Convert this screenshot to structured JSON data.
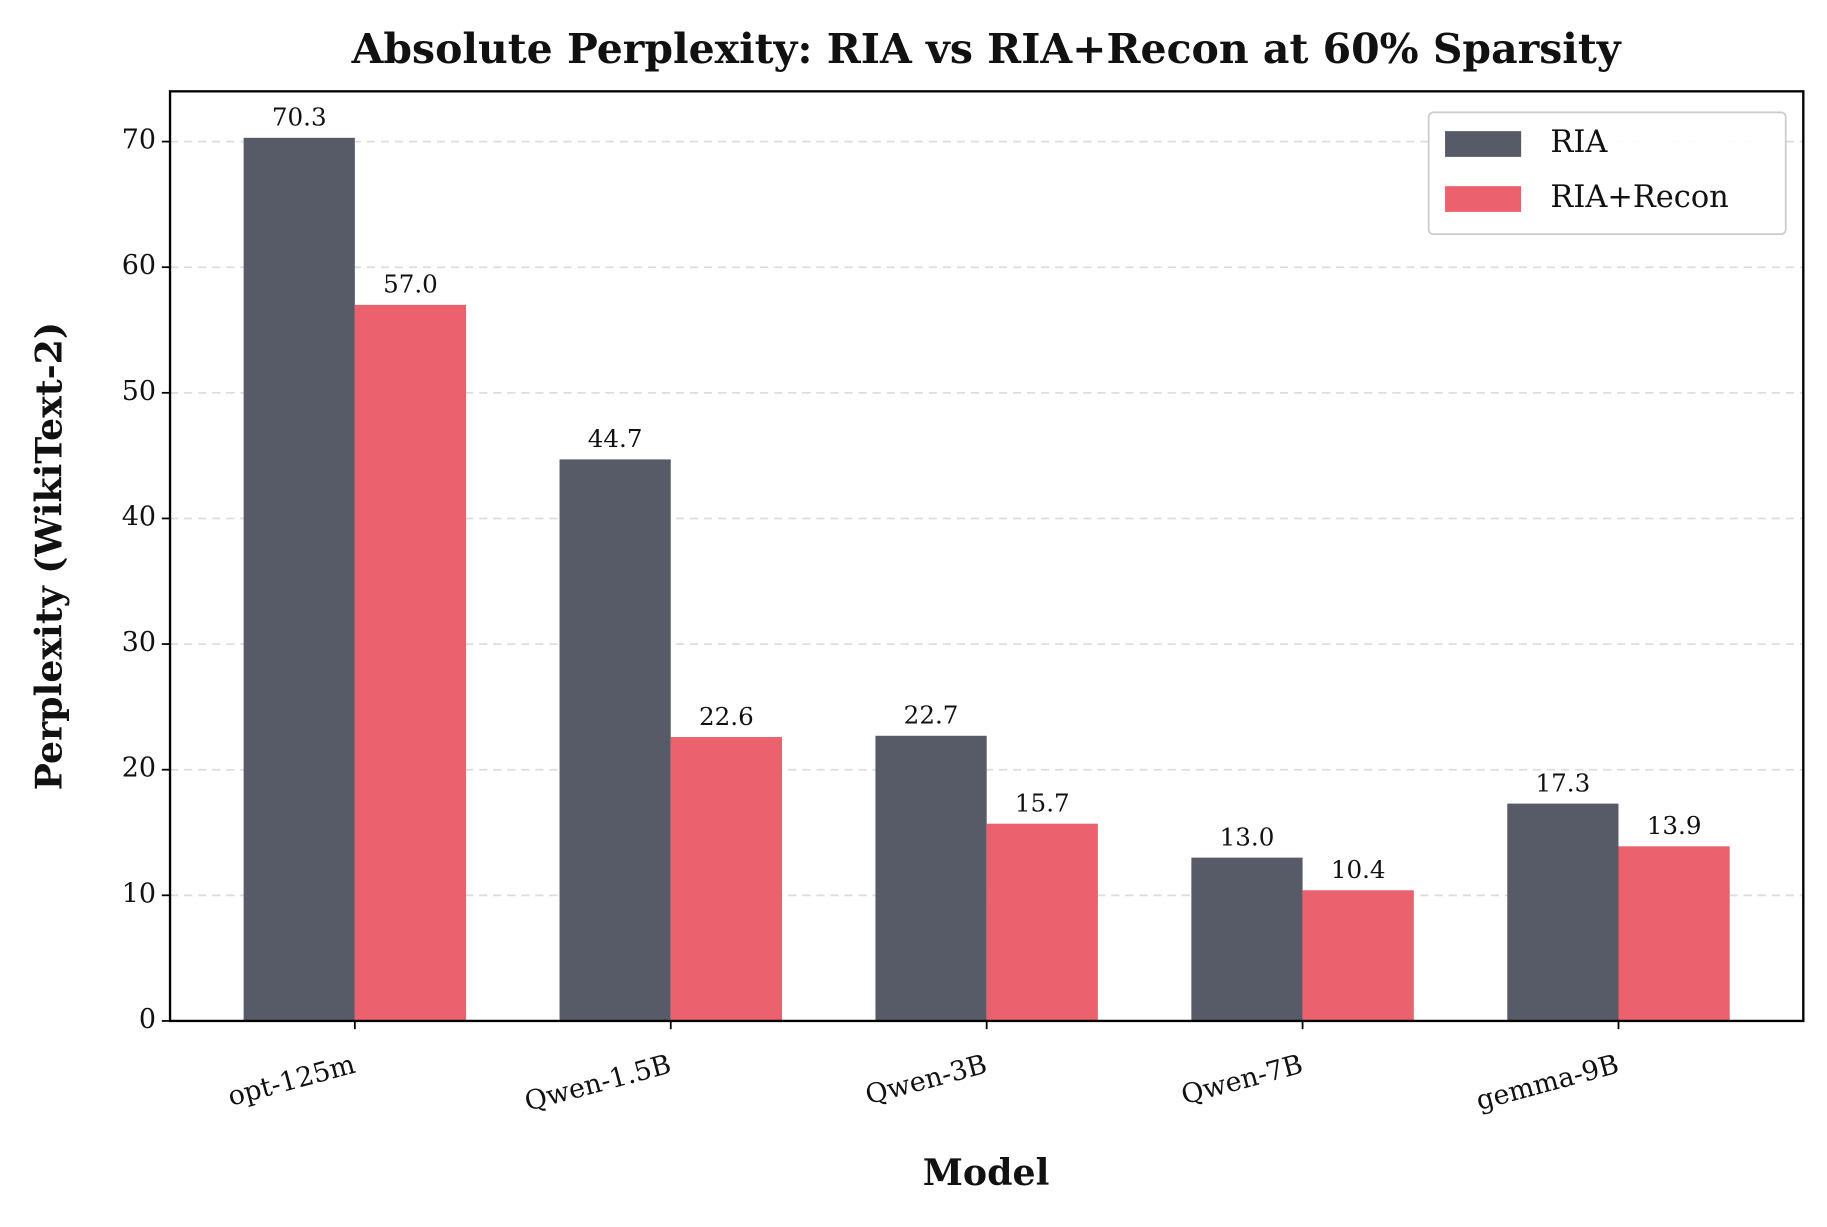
{
  "chart_data": {
    "type": "bar",
    "title": "Absolute Perplexity: RIA vs RIA+Recon at 60% Sparsity",
    "x_label": "Model",
    "y_label": "Perplexity (WikiText-2)",
    "categories": [
      "opt-125m",
      "Qwen-1.5B",
      "Qwen-3B",
      "Qwen-7B",
      "gemma-9B"
    ],
    "series": [
      {
        "name": "RIA",
        "color": "#575b67",
        "values": [
          70.3,
          44.7,
          22.7,
          13.0,
          17.3
        ],
        "value_labels": [
          "70.3",
          "44.7",
          "22.7",
          "13.0",
          "17.3"
        ]
      },
      {
        "name": "RIA+Recon",
        "color": "#eb616d",
        "values": [
          57.0,
          22.6,
          15.7,
          10.4,
          13.9
        ],
        "value_labels": [
          "57.0",
          "22.6",
          "15.7",
          "10.4",
          "13.9"
        ]
      }
    ],
    "ylim": [
      0,
      74
    ],
    "yticks": [
      0,
      10,
      20,
      30,
      40,
      50,
      60,
      70
    ],
    "grid": true,
    "legend": "upper right"
  }
}
